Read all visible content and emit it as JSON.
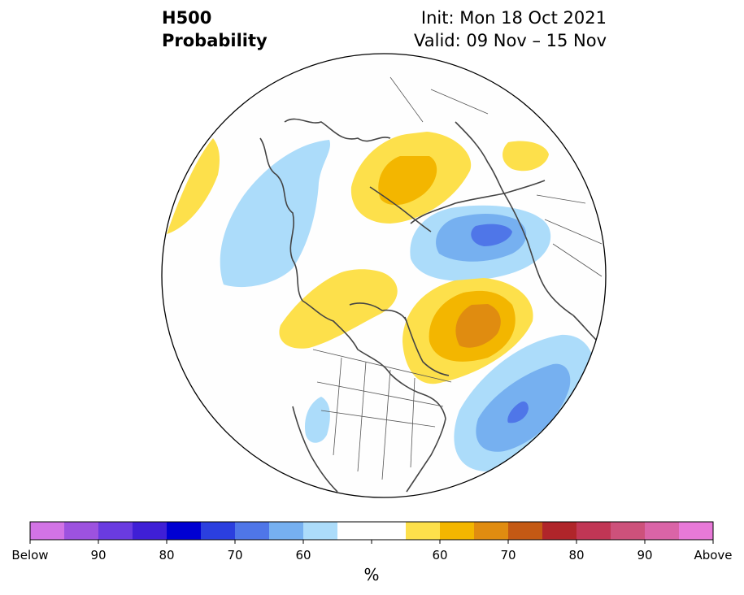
{
  "title": {
    "left_line1": "H500",
    "left_line2": "Probability",
    "right_line1": "Init: Mon 18 Oct 2021",
    "right_line2": "Valid: 09 Nov – 15 Nov"
  },
  "colorbar": {
    "unit": "%",
    "colors": [
      "#d273e5",
      "#9d52df",
      "#6a3be0",
      "#3f1fd6",
      "#0000d2",
      "#2b3fdf",
      "#4f76e8",
      "#76b0f0",
      "#acdcfa",
      "#ffffff",
      "#ffffff",
      "#fde04b",
      "#f3b600",
      "#e08c10",
      "#c45914",
      "#b0252a",
      "#c13655",
      "#cd517b",
      "#da64a7",
      "#e879d8"
    ],
    "labels": [
      "Below",
      "90",
      "80",
      "70",
      "60",
      "",
      "60",
      "70",
      "80",
      "90",
      "Above"
    ]
  },
  "legend_colors": {
    "below_light": "#acdcfa",
    "below_mid": "#76b0f0",
    "below_dark": "#4f76e8",
    "above_light": "#fde04b",
    "above_mid": "#f3b600",
    "above_dark": "#e08c10"
  }
}
